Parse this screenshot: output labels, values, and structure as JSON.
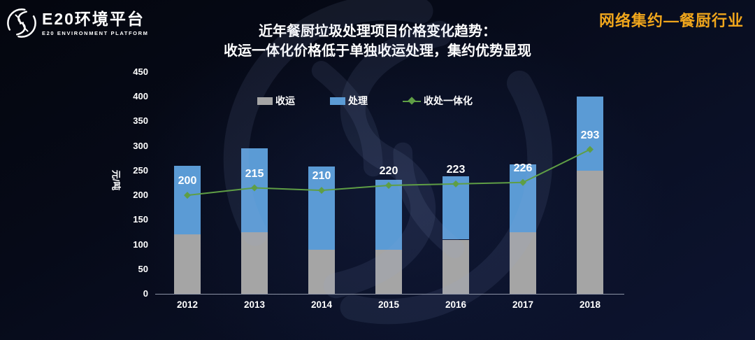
{
  "header": {
    "logo_title": "E20环境平台",
    "logo_subtitle": "E20 ENVIRONMENT PLATFORM",
    "corner_tag": "网络集约—餐厨行业"
  },
  "title": {
    "line1": "近年餐厨垃圾处理项目价格变化趋势：",
    "line2": "收运一体化价格低于单独收运处理，集约优势显现"
  },
  "chart_data": {
    "type": "bar",
    "subtype": "stacked-bar-with-line",
    "categories": [
      "2012",
      "2013",
      "2014",
      "2015",
      "2016",
      "2017",
      "2018"
    ],
    "series": [
      {
        "name": "收运",
        "type": "bar",
        "color": "#A5A5A5",
        "values": [
          120,
          125,
          90,
          90,
          110,
          125,
          250
        ]
      },
      {
        "name": "处理",
        "type": "bar",
        "color": "#5B9BD5",
        "values": [
          140,
          170,
          168,
          142,
          128,
          137,
          150
        ]
      },
      {
        "name": "收处一体化",
        "type": "line",
        "color": "#5F9E45",
        "values": [
          200,
          215,
          210,
          220,
          223,
          226,
          293
        ],
        "labels_shown": true
      }
    ],
    "bar_totals": [
      260,
      295,
      258,
      232,
      238,
      262,
      400
    ],
    "title": "近年餐厨垃圾处理项目价格变化趋势",
    "xlabel": "",
    "ylabel": "元/吨",
    "ylim": [
      0,
      450
    ],
    "ytick_step": 50,
    "grid": false,
    "legend_position": "top-center",
    "value_label_color": "#FFFFFF",
    "axis_line_color": "#8C93A6"
  },
  "colors": {
    "background_dark": "#05070F",
    "background_navy": "#0D1430",
    "accent_gold": "#F0A61C",
    "text": "#FFFFFF",
    "watermark": "rgba(150,170,220,0.10)"
  }
}
